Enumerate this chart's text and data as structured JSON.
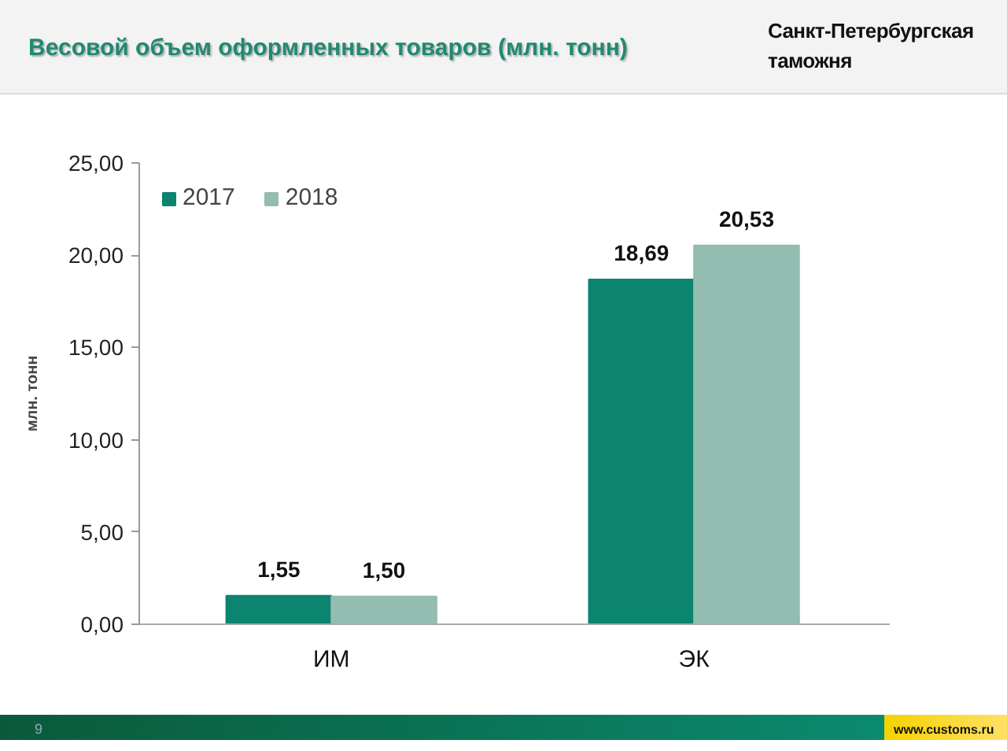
{
  "chart_data": {
    "type": "bar",
    "title": "Весовой объем оформленных товаров (млн. тонн)",
    "ylabel": "млн. тонн",
    "categories": [
      "ИМ",
      "ЭК"
    ],
    "series": [
      {
        "name": "2017",
        "color": "#0b8470",
        "values": [
          1.55,
          18.69
        ],
        "value_labels": [
          "1,55",
          "18,69"
        ]
      },
      {
        "name": "2018",
        "color": "#93bdb1",
        "values": [
          1.5,
          20.53
        ],
        "value_labels": [
          "1,50",
          "20,53"
        ]
      }
    ],
    "ylim": [
      0,
      25
    ],
    "yticks": [
      {
        "value": 0,
        "label": "0,00"
      },
      {
        "value": 5,
        "label": "5,00"
      },
      {
        "value": 10,
        "label": "10,00"
      },
      {
        "value": 15,
        "label": "15,00"
      },
      {
        "value": 20,
        "label": "20,00"
      },
      {
        "value": 25,
        "label": "25,00"
      }
    ],
    "grid": false,
    "legend": "top left",
    "annotations": [
      "Санкт-Петербургская таможня",
      "9",
      "www.customs.ru"
    ]
  }
}
